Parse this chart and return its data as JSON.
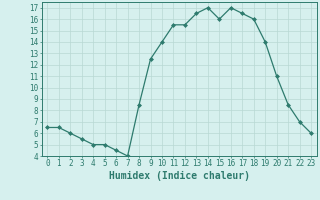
{
  "x": [
    0,
    1,
    2,
    3,
    4,
    5,
    6,
    7,
    8,
    9,
    10,
    11,
    12,
    13,
    14,
    15,
    16,
    17,
    18,
    19,
    20,
    21,
    22,
    23
  ],
  "y": [
    6.5,
    6.5,
    6.0,
    5.5,
    5.0,
    5.0,
    4.5,
    4.0,
    8.5,
    12.5,
    14.0,
    15.5,
    15.5,
    16.5,
    17.0,
    16.0,
    17.0,
    16.5,
    16.0,
    14.0,
    11.0,
    8.5,
    7.0,
    6.0
  ],
  "xlabel": "Humidex (Indice chaleur)",
  "line_color": "#2e7b6e",
  "marker": "D",
  "marker_size": 2,
  "bg_color": "#d6f0ee",
  "grid_color": "#b8d8d4",
  "ylim": [
    4,
    17.5
  ],
  "xlim": [
    -0.5,
    23.5
  ],
  "yticks": [
    4,
    5,
    6,
    7,
    8,
    9,
    10,
    11,
    12,
    13,
    14,
    15,
    16,
    17
  ],
  "xticks": [
    0,
    1,
    2,
    3,
    4,
    5,
    6,
    7,
    8,
    9,
    10,
    11,
    12,
    13,
    14,
    15,
    16,
    17,
    18,
    19,
    20,
    21,
    22,
    23
  ],
  "tick_fontsize": 5.5,
  "xlabel_fontsize": 7.0,
  "tick_color": "#2e7b6e",
  "axis_color": "#2e7b6e",
  "linewidth": 0.9
}
